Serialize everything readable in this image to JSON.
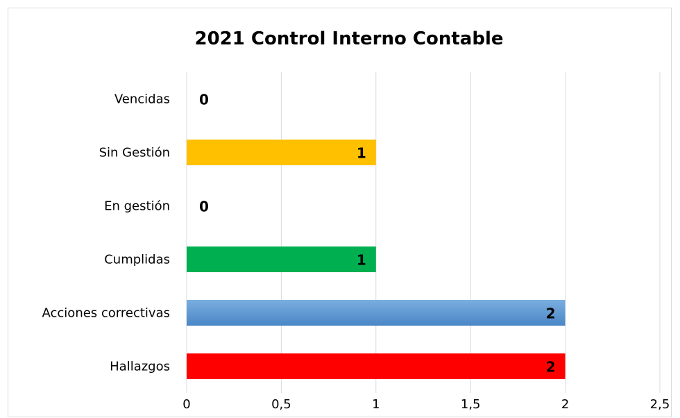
{
  "chart_data": {
    "type": "bar",
    "orientation": "horizontal",
    "title": "2021 Control Interno Contable",
    "xlabel": "",
    "ylabel": "",
    "categories": [
      "Vencidas",
      "Sin Gestión",
      "En gestión",
      "Cumplidas",
      "Acciones correctivas",
      "Hallazgos"
    ],
    "values": [
      0,
      1,
      0,
      1,
      2,
      2
    ],
    "value_labels": [
      "0",
      "1",
      "0",
      "1",
      "2",
      "2"
    ],
    "bar_colors": [
      "#C0C0C0",
      "#FFC000",
      "#C0C0C0",
      "#00B050",
      "#5B9BD5",
      "#FF0000"
    ],
    "xlim": [
      0,
      2.5
    ],
    "xticks": [
      0,
      0.5,
      1,
      1.5,
      2,
      2.5
    ],
    "xtick_labels": [
      "0",
      "0,5",
      "1",
      "1,5",
      "2",
      "2,5"
    ],
    "grid": "vertical",
    "legend": "none"
  }
}
